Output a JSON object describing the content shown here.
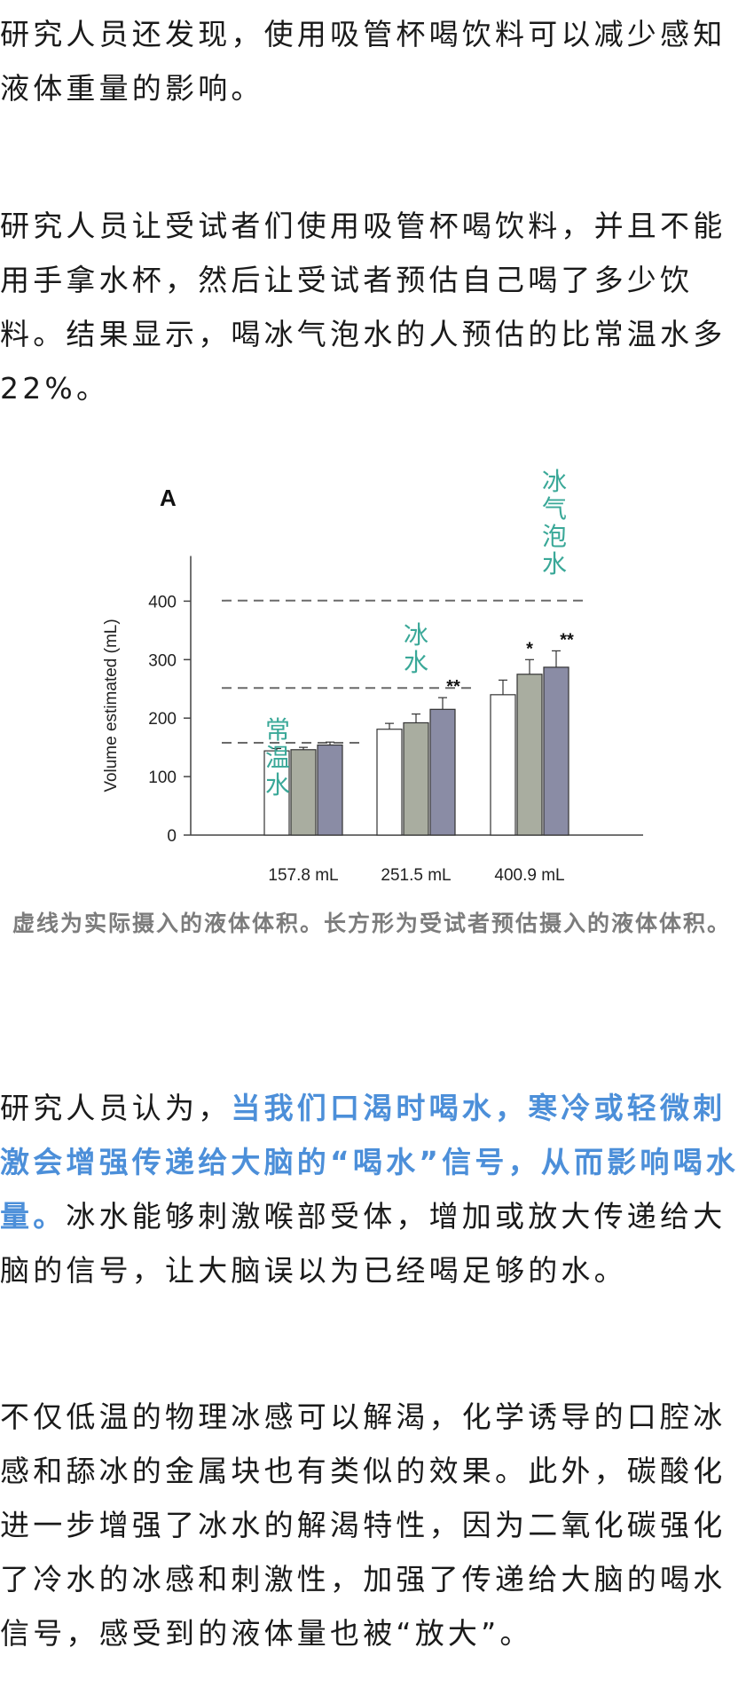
{
  "paragraphs": {
    "p1": "研究人员还发现，使用吸管杯喝饮料可以减少感知液体重量的影响。",
    "p2": "研究人员让受试者们使用吸管杯喝饮料，并且不能用手拿水杯，然后让受试者预估自己喝了多少饮料。结果显示，喝冰气泡水的人预估的比常温水多22%。",
    "p3_prefix": "研究人员认为，",
    "p3_highlight": "当我们口渴时喝水，寒冷或轻微刺激会增强传递给大脑的“喝水”信号，从而影响喝水量。",
    "p3_suffix": "冰水能够刺激喉部受体，增加或放大传递给大脑的信号，让大脑误以为已经喝足够的水。",
    "p4": "不仅低温的物理冰感可以解渴，化学诱导的口腔冰感和舔冰的金属块也有类似的效果。此外，碳酸化进一步增强了冰水的解渴特性，因为二氧化碳强化了冷水的冰感和刺激性，加强了传递给大脑的喝水信号，感受到的液体量也被“放大”。"
  },
  "caption": "虚线为实际摄入的液体体积。长方形为受试者预估摄入的液体体积。",
  "colors": {
    "highlight": "#4c8fd9",
    "caption": "#7c7c7c",
    "label_teal": "#3aa898"
  },
  "chart_data": {
    "type": "bar",
    "panel_label": "A",
    "ylabel": "Volume estimated (mL)",
    "ylim": [
      0,
      450
    ],
    "yticks": [
      0,
      100,
      200,
      300,
      400
    ],
    "categories": [
      "157.8 mL",
      "251.5 mL",
      "400.9 mL"
    ],
    "actual_volumes": [
      157.8,
      251.5,
      400.9
    ],
    "series": [
      {
        "color": "#ffffff",
        "values": [
          144,
          181,
          240
        ],
        "errors": [
          4,
          10,
          25
        ]
      },
      {
        "color": "#a9ada0",
        "values": [
          146,
          192,
          275
        ],
        "errors": [
          4,
          15,
          25
        ]
      },
      {
        "color": "#8a8ca5",
        "values": [
          154,
          215,
          287
        ],
        "errors": [
          5,
          20,
          28
        ]
      }
    ],
    "significance": [
      {
        "category": 1,
        "series": 2,
        "text": "**"
      },
      {
        "category": 2,
        "series": 1,
        "text": "*"
      },
      {
        "category": 2,
        "series": 2,
        "text": "**"
      }
    ],
    "annotations": [
      {
        "text": "常温水"
      },
      {
        "text": "冰水"
      },
      {
        "text": "冰气泡水"
      }
    ]
  }
}
